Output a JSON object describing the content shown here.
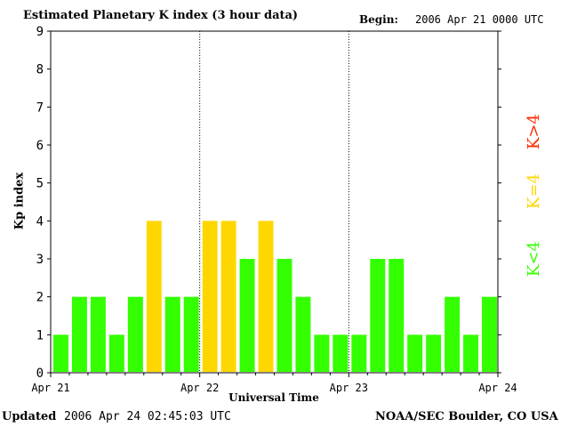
{
  "header": {
    "title": "Estimated Planetary K index (3 hour data)",
    "begin_label": "Begin:",
    "begin_value": "2006 Apr 21 0000 UTC"
  },
  "footer": {
    "updated_label": "Updated",
    "updated_value": "2006 Apr 24 02:45:03 UTC",
    "credit": "NOAA/SEC Boulder, CO USA"
  },
  "legend": {
    "high": {
      "label": "K>4",
      "color": "#ff2a00"
    },
    "equal": {
      "label": "K=4",
      "color": "#ffd700"
    },
    "low": {
      "label": "K<4",
      "color": "#33ff00"
    }
  },
  "chart_data": {
    "type": "bar",
    "title": "Estimated Planetary K index (3 hour data)",
    "xlabel": "Universal Time",
    "ylabel": "Kp index",
    "ylim": [
      0,
      9
    ],
    "yticks": [
      0,
      1,
      2,
      3,
      4,
      5,
      6,
      7,
      8,
      9
    ],
    "xticks": [
      "Apr 21",
      "Apr 22",
      "Apr 23",
      "Apr 24"
    ],
    "day_separators": [
      "Apr 22",
      "Apr 23"
    ],
    "interval_hours": 3,
    "values": [
      1,
      2,
      2,
      1,
      2,
      4,
      2,
      2,
      4,
      4,
      3,
      4,
      3,
      2,
      1,
      1,
      1,
      3,
      3,
      1,
      1,
      2,
      1,
      2
    ],
    "colors": {
      "below_4": "#33ff00",
      "equal_4": "#ffd700",
      "above_4": "#ff2a00"
    }
  }
}
